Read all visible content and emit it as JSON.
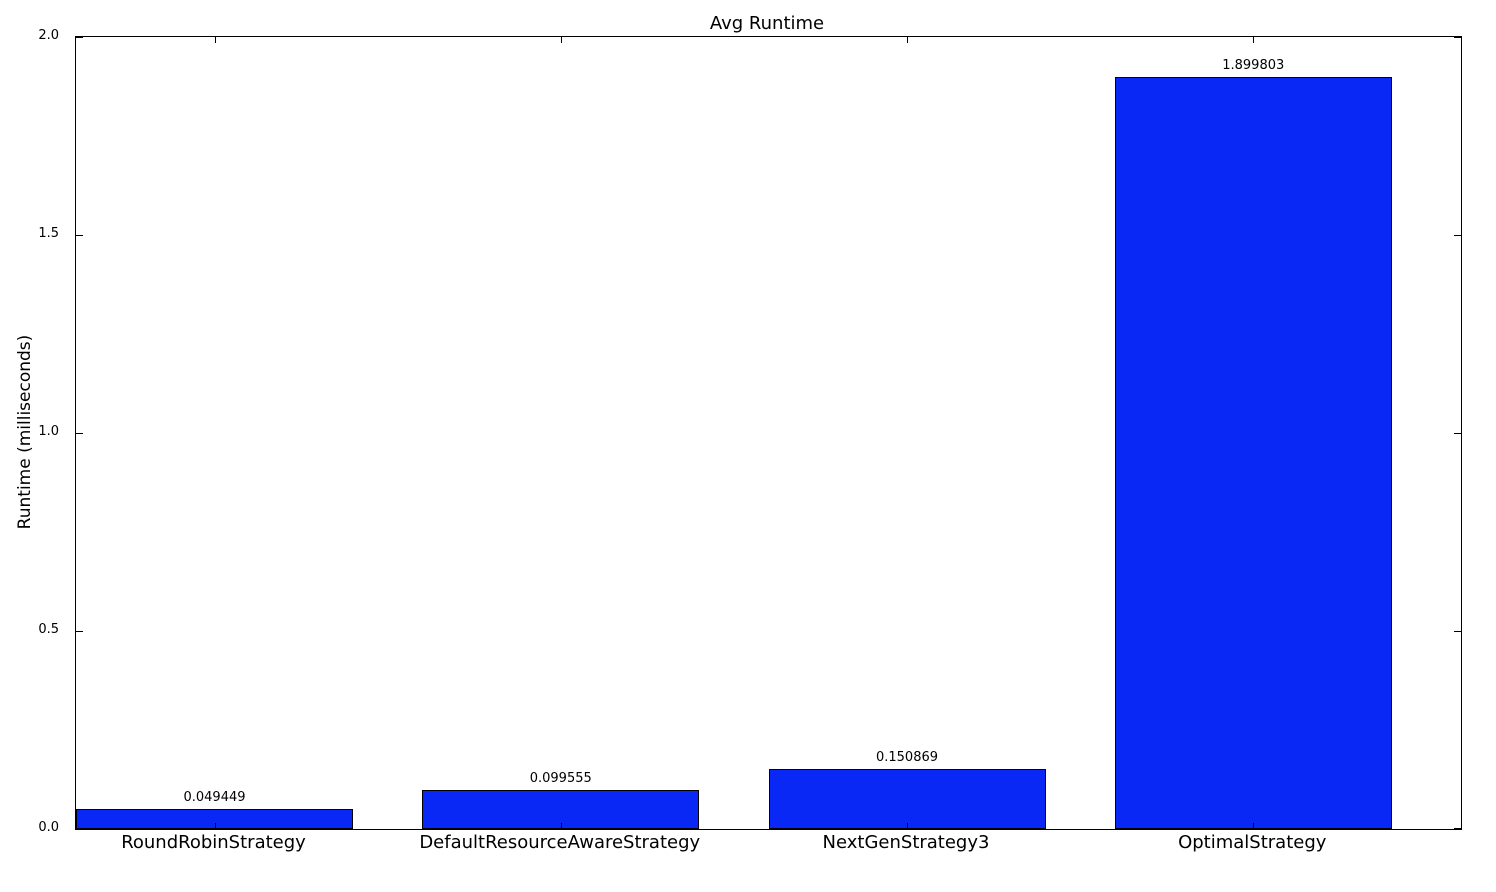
{
  "chart_data": {
    "type": "bar",
    "title": "Avg Runtime",
    "xlabel": "",
    "ylabel": "Runtime (milliseconds)",
    "categories": [
      "RoundRobinStrategy",
      "DefaultResourceAwareStrategy",
      "NextGenStrategy3",
      "OptimalStrategy"
    ],
    "values": [
      0.049449,
      0.099555,
      0.150869,
      1.899803
    ],
    "bar_value_labels": [
      "0.049449",
      "0.099555",
      "0.150869",
      "1.899803"
    ],
    "ylim": [
      0,
      2.0
    ],
    "ytick_values": [
      0.0,
      0.5,
      1.0,
      1.5,
      2.0
    ],
    "ytick_labels": [
      "0.0",
      "0.5",
      "1.0",
      "1.5",
      "2.0"
    ],
    "bar_width_fraction": 0.8,
    "grid": false,
    "legend": "none",
    "tick_direction": "in",
    "colors": {
      "bar_fill": "#0a28f5",
      "bar_edge": "#000000",
      "axis": "#000000",
      "text": "#000000",
      "background": "#ffffff"
    }
  }
}
